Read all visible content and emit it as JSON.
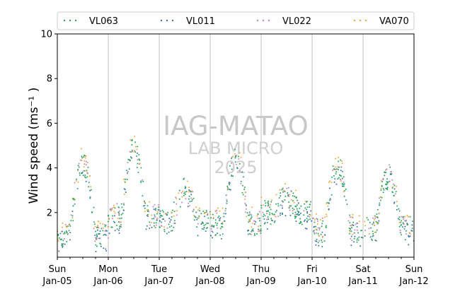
{
  "chart_data": {
    "type": "scatter",
    "xlim": [
      "2025-01-05",
      "2025-01-12"
    ],
    "ylim": [
      0,
      10
    ],
    "yticks": [
      2,
      4,
      6,
      8,
      10
    ],
    "ytick_labels": [
      "2",
      "4",
      "6",
      "8",
      "10"
    ],
    "ylabel": "Wind speed (ms⁻¹ )",
    "xticks": [
      "2025-01-05",
      "2025-01-06",
      "2025-01-07",
      "2025-01-08",
      "2025-01-09",
      "2025-01-10",
      "2025-01-11",
      "2025-01-12"
    ],
    "xtick_labels": [
      [
        "Sun",
        "Jan-05"
      ],
      [
        "Mon",
        "Jan-06"
      ],
      [
        "Tue",
        "Jan-07"
      ],
      [
        "Wed",
        "Jan-08"
      ],
      [
        "Thu",
        "Jan-09"
      ],
      [
        "Fri",
        "Jan-10"
      ],
      [
        "Sat",
        "Jan-11"
      ],
      [
        "Sun",
        "Jan-12"
      ]
    ],
    "grid": "vertical",
    "legend_position": "top",
    "watermark": [
      "IAG-MATAO",
      "LAB MICRO",
      "2025"
    ],
    "series": [
      {
        "name": "VL063",
        "color": "#2ca25f",
        "marker": "dot",
        "daily_cycle": [
          {
            "day": "2025-01-05",
            "min": 1.0,
            "peak": 4.2
          },
          {
            "day": "2025-01-06",
            "min": 1.8,
            "peak": 4.8
          },
          {
            "day": "2025-01-07",
            "min": 1.6,
            "peak": 3.0
          },
          {
            "day": "2025-01-08",
            "min": 1.5,
            "peak": 4.3
          },
          {
            "day": "2025-01-09",
            "min": 2.0,
            "peak": 2.6
          },
          {
            "day": "2025-01-10",
            "min": 1.2,
            "peak": 4.0
          },
          {
            "day": "2025-01-11",
            "min": 1.3,
            "peak": 3.6
          }
        ]
      },
      {
        "name": "VL011",
        "color": "#3a6fb0",
        "marker": "dot",
        "offset": -0.2
      },
      {
        "name": "VL022",
        "color": "#c981b8",
        "marker": "dot",
        "offset": 0.05
      },
      {
        "name": "VA070",
        "color": "#f2a93b",
        "marker": "dot",
        "offset": 0.2
      }
    ]
  }
}
